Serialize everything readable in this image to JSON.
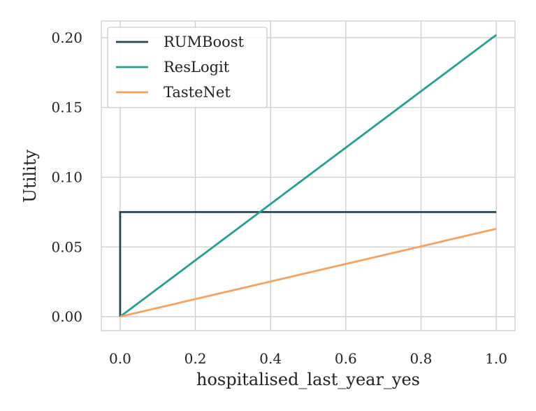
{
  "chart_data": {
    "type": "line",
    "xlabel": "hospitalised_last_year_yes",
    "ylabel": "Utility",
    "xlim": [
      -0.05,
      1.05
    ],
    "ylim": [
      -0.01,
      0.212
    ],
    "xticks": [
      0.0,
      0.2,
      0.4,
      0.6,
      0.8,
      1.0
    ],
    "xtick_labels": [
      "0.0",
      "0.2",
      "0.4",
      "0.6",
      "0.8",
      "1.0"
    ],
    "yticks": [
      0.0,
      0.05,
      0.1,
      0.15,
      0.2
    ],
    "ytick_labels": [
      "0.00",
      "0.05",
      "0.10",
      "0.15",
      "0.20"
    ],
    "grid": true,
    "legend_position": "top-left",
    "series": [
      {
        "name": "RUMBoost",
        "color": "#264653",
        "x": [
          0.0,
          0.0,
          1.0
        ],
        "y": [
          0.0,
          0.075,
          0.075
        ]
      },
      {
        "name": "ResLogit",
        "color": "#2a9d8f",
        "x": [
          0.0,
          1.0
        ],
        "y": [
          0.0,
          0.202
        ]
      },
      {
        "name": "TasteNet",
        "color": "#f4a261",
        "x": [
          0.0,
          1.0
        ],
        "y": [
          0.0,
          0.063
        ]
      }
    ]
  }
}
